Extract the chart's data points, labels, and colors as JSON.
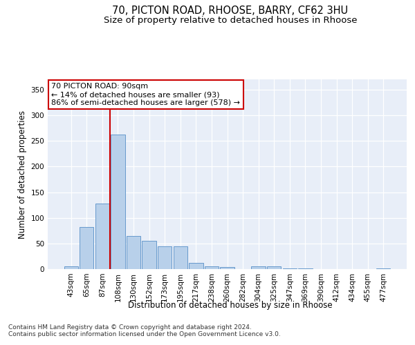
{
  "title_line1": "70, PICTON ROAD, RHOOSE, BARRY, CF62 3HU",
  "title_line2": "Size of property relative to detached houses in Rhoose",
  "xlabel": "Distribution of detached houses by size in Rhoose",
  "ylabel": "Number of detached properties",
  "categories": [
    "43sqm",
    "65sqm",
    "87sqm",
    "108sqm",
    "130sqm",
    "152sqm",
    "173sqm",
    "195sqm",
    "217sqm",
    "238sqm",
    "260sqm",
    "282sqm",
    "304sqm",
    "325sqm",
    "347sqm",
    "369sqm",
    "390sqm",
    "412sqm",
    "434sqm",
    "455sqm",
    "477sqm"
  ],
  "values": [
    5,
    82,
    128,
    263,
    65,
    55,
    45,
    45,
    12,
    6,
    4,
    0,
    5,
    5,
    2,
    1,
    0,
    0,
    0,
    0,
    2
  ],
  "bar_color": "#b8d0ea",
  "bar_edge_color": "#6699cc",
  "vline_color": "#cc0000",
  "vline_xindex": 2.5,
  "annotation_text": "70 PICTON ROAD: 90sqm\n← 14% of detached houses are smaller (93)\n86% of semi-detached houses are larger (578) →",
  "annotation_box_color": "white",
  "annotation_box_edge": "#cc0000",
  "ylim": [
    0,
    370
  ],
  "yticks": [
    0,
    50,
    100,
    150,
    200,
    250,
    300,
    350
  ],
  "background_color": "#e8eef8",
  "footer_text": "Contains HM Land Registry data © Crown copyright and database right 2024.\nContains public sector information licensed under the Open Government Licence v3.0.",
  "title_fontsize": 10.5,
  "subtitle_fontsize": 9.5,
  "axis_label_fontsize": 8.5,
  "tick_fontsize": 7.5,
  "annotation_fontsize": 8,
  "footer_fontsize": 6.5
}
